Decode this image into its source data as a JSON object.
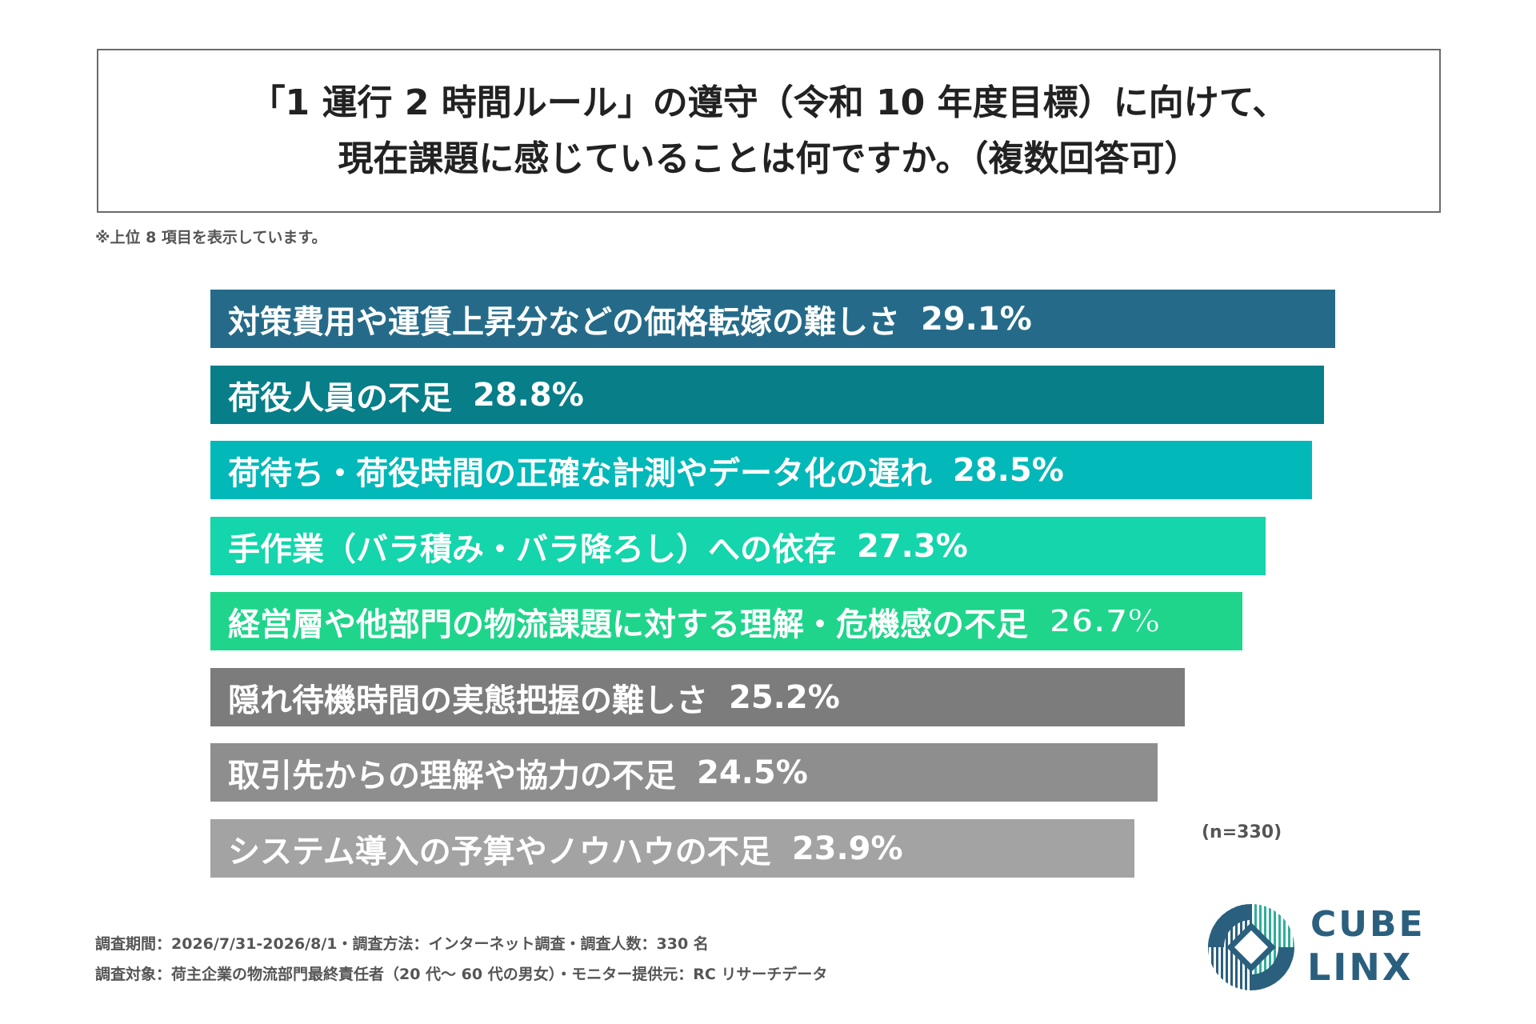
{
  "title": {
    "line1": "「1 運行 2 時間ルール」の遵守（令和 10 年度目標）に向けて、",
    "line2": "現在課題に感じていることは何ですか。（複数回答可）"
  },
  "note": "※上位 8 項目を表示しています。",
  "chart_data": {
    "type": "bar",
    "orientation": "horizontal",
    "unit": "%",
    "xlim": [
      0,
      32
    ],
    "categories": [
      "対策費用や運賃上昇分などの価格転嫁の難しさ",
      "荷役人員の不足",
      "荷待ち・荷役時間の正確な計測やデータ化の遅れ",
      "手作業（バラ積み・バラ降ろし）への依存",
      "経営層や他部門の物流課題に対する理解・危機感の不足",
      "隠れ待機時間の実態把握の難しさ",
      "取引先からの理解や協力の不足",
      "システム導入の予算やノウハウの不足"
    ],
    "values": [
      29.1,
      28.8,
      28.5,
      27.3,
      26.7,
      25.2,
      24.5,
      23.9
    ],
    "value_labels": [
      "29.1%",
      "28.8%",
      "28.5%",
      "27.3%",
      "26.7%",
      "25.2%",
      "24.5%",
      "23.9%"
    ],
    "colors": [
      "#256b89",
      "#077e88",
      "#02b8b8",
      "#14d5ab",
      "#1fd58b",
      "#7c7c7c",
      "#8e8e8e",
      "#a3a3a3"
    ],
    "n_label": "(n=330)"
  },
  "footer": {
    "line1": "調査期間：2026/7/31-2026/8/1・調査方法：インターネット調査・調査人数：330 名",
    "line2": "調査対象：荷主企業の物流部門最終責任者（20 代～ 60 代の男女）・モニター提供元：RC リサーチデータ"
  },
  "logo": {
    "line1": "CUBE",
    "line2": "LINX",
    "color": "#2b5f7e"
  }
}
